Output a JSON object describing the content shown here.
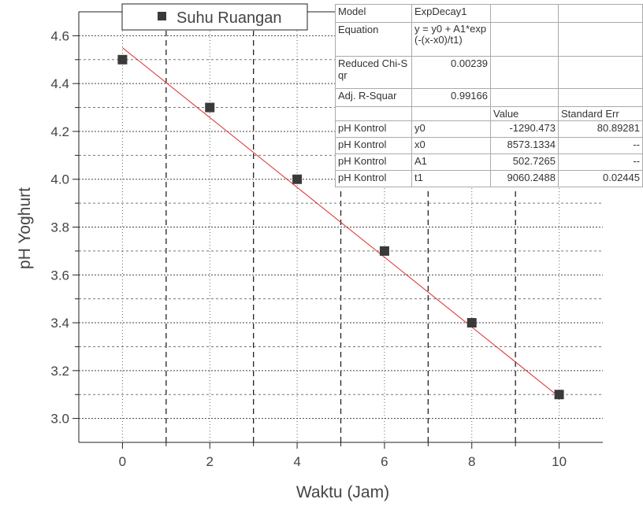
{
  "chart_data": {
    "type": "scatter",
    "x_label": "Waktu (Jam)",
    "y_label": "pH Yoghurt",
    "xlim": [
      -1,
      11
    ],
    "xticks": [
      0,
      2,
      4,
      6,
      8,
      10
    ],
    "xminor": [
      1,
      3,
      5,
      7,
      9
    ],
    "ylim": [
      2.9,
      4.7
    ],
    "yticks": [
      {
        "value": 3,
        "label": "3.0"
      },
      3.2,
      3.4,
      3.6,
      3.8,
      {
        "value": 4,
        "label": "4.0"
      },
      4.2,
      4.4,
      4.6
    ],
    "yminor": [
      3.1,
      3.3,
      3.5,
      3.7,
      3.9,
      4.1,
      4.3,
      4.5
    ],
    "grid": true,
    "legend": "top-left",
    "series": [
      {
        "name": "Suhu Ruangan",
        "color": "#3a3a3a",
        "x": [
          0,
          2,
          4,
          6,
          8,
          10
        ],
        "values": [
          4.5,
          4.3,
          4.0,
          3.7,
          3.4,
          3.1
        ]
      }
    ],
    "fit": {
      "color": "#e02828",
      "x": [
        0,
        10
      ],
      "values": [
        4.55,
        3.09
      ]
    }
  },
  "fit_table": {
    "info": [
      {
        "label": "Model",
        "value": "ExpDecay1"
      },
      {
        "label": "Equation",
        "value": "y = y0 + A1*exp(-(x-x0)/t1)"
      },
      {
        "label": "Reduced Chi-Sqr",
        "value": "0.00239"
      },
      {
        "label": "Adj. R-Squar",
        "value": "0.99166"
      }
    ],
    "header": [
      "Value",
      "Standard Err"
    ],
    "params": [
      [
        "pH Kontrol",
        "y0",
        "-1290.473",
        "80.89281"
      ],
      [
        "pH Kontrol",
        "x0",
        "8573.1334",
        "--"
      ],
      [
        "pH Kontrol",
        "A1",
        "502.7265",
        "--"
      ],
      [
        "pH Kontrol",
        "t1",
        "9060.2488",
        "0.02445"
      ]
    ]
  }
}
